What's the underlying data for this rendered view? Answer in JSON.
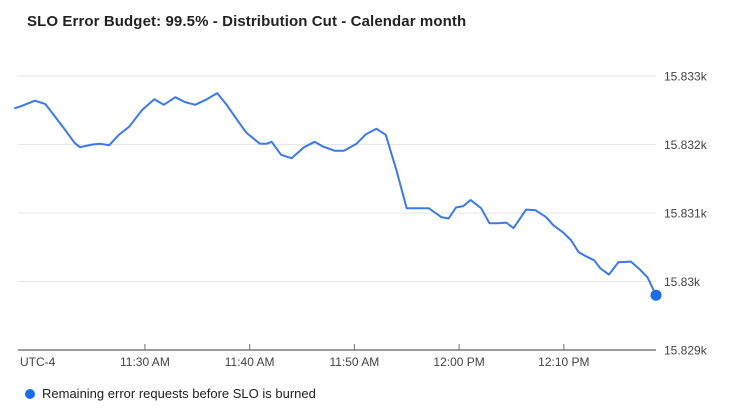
{
  "title": "SLO Error Budget: 99.5% - Distribution Cut - Calendar month",
  "legend": {
    "marker": "blue-dot",
    "marker_color": "#1a6ce8",
    "label": "Remaining error requests before SLO is burned"
  },
  "colors": {
    "line": "#3b78e8",
    "end_marker": "#1a6ce8",
    "gridline": "#e6e6e6",
    "axis_line": "#616161",
    "tick": "#757575",
    "axis_text": "#444444",
    "background": "#ffffff"
  },
  "chart_data": {
    "type": "line",
    "title": "SLO Error Budget: 99.5% - Distribution Cut - Calendar month",
    "xlabel": "",
    "ylabel": "",
    "grid": true,
    "legend_position": "bottom-left",
    "x_axis": {
      "corner_label": "UTC-4",
      "unit": "minutes after 11:00 AM local (UTC-4)",
      "range": [
        17.5,
        78.8
      ],
      "ticks": [
        {
          "t": 30,
          "label": "11:30 AM"
        },
        {
          "t": 40,
          "label": "11:40 AM"
        },
        {
          "t": 50,
          "label": "11:50 AM"
        },
        {
          "t": 60,
          "label": "12:00 PM"
        },
        {
          "t": 70,
          "label": "12:10 PM"
        }
      ]
    },
    "y_axis": {
      "range": [
        15829,
        15833
      ],
      "ticks": [
        {
          "value": 15829,
          "label": "15.829k"
        },
        {
          "value": 15830,
          "label": "15.83k"
        },
        {
          "value": 15831,
          "label": "15.831k"
        },
        {
          "value": 15832,
          "label": "15.832k"
        },
        {
          "value": 15833,
          "label": "15.833k"
        }
      ]
    },
    "series": [
      {
        "name": "Remaining error requests before SLO is burned",
        "color": "#3b78e8",
        "end_marker": true,
        "end_marker_color": "#1a6ce8",
        "points": [
          [
            17.6,
            15832.53
          ],
          [
            18.2,
            15832.56
          ],
          [
            19.5,
            15832.64
          ],
          [
            20.5,
            15832.59
          ],
          [
            21.3,
            15832.43
          ],
          [
            22.4,
            15832.21
          ],
          [
            23.3,
            15832.02
          ],
          [
            23.8,
            15831.96
          ],
          [
            25.0,
            15832.0
          ],
          [
            25.7,
            15832.01
          ],
          [
            26.6,
            15831.99
          ],
          [
            27.5,
            15832.14
          ],
          [
            28.5,
            15832.26
          ],
          [
            29.7,
            15832.5
          ],
          [
            30.9,
            15832.66
          ],
          [
            31.8,
            15832.58
          ],
          [
            32.9,
            15832.69
          ],
          [
            33.8,
            15832.62
          ],
          [
            34.8,
            15832.58
          ],
          [
            35.9,
            15832.66
          ],
          [
            36.9,
            15832.75
          ],
          [
            37.8,
            15832.58
          ],
          [
            38.8,
            15832.36
          ],
          [
            39.7,
            15832.17
          ],
          [
            41.0,
            15832.01
          ],
          [
            41.6,
            15832.01
          ],
          [
            42.1,
            15832.04
          ],
          [
            43.0,
            15831.85
          ],
          [
            44.0,
            15831.8
          ],
          [
            45.2,
            15831.96
          ],
          [
            46.2,
            15832.04
          ],
          [
            47.0,
            15831.97
          ],
          [
            48.1,
            15831.91
          ],
          [
            49.0,
            15831.91
          ],
          [
            50.2,
            15832.01
          ],
          [
            51.1,
            15832.15
          ],
          [
            52.1,
            15832.23
          ],
          [
            53.0,
            15832.14
          ],
          [
            54.0,
            15831.63
          ],
          [
            55.0,
            15831.07
          ],
          [
            55.9,
            15831.07
          ],
          [
            57.1,
            15831.07
          ],
          [
            58.3,
            15830.94
          ],
          [
            59.0,
            15830.92
          ],
          [
            59.7,
            15831.08
          ],
          [
            60.4,
            15831.1
          ],
          [
            61.1,
            15831.19
          ],
          [
            62.1,
            15831.07
          ],
          [
            62.9,
            15830.85
          ],
          [
            63.7,
            15830.85
          ],
          [
            64.5,
            15830.86
          ],
          [
            65.2,
            15830.78
          ],
          [
            66.4,
            15831.05
          ],
          [
            67.3,
            15831.04
          ],
          [
            68.3,
            15830.94
          ],
          [
            69.0,
            15830.82
          ],
          [
            69.9,
            15830.72
          ],
          [
            70.7,
            15830.6
          ],
          [
            71.4,
            15830.43
          ],
          [
            72.1,
            15830.37
          ],
          [
            72.9,
            15830.31
          ],
          [
            73.5,
            15830.19
          ],
          [
            74.3,
            15830.1
          ],
          [
            75.2,
            15830.28
          ],
          [
            76.4,
            15830.29
          ],
          [
            77.3,
            15830.17
          ],
          [
            78.0,
            15830.06
          ],
          [
            78.8,
            15829.8
          ]
        ]
      }
    ]
  }
}
